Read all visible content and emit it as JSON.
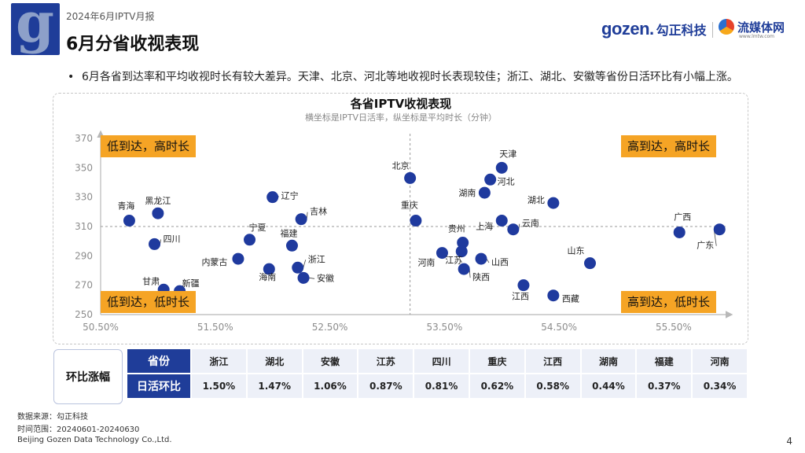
{
  "header": {
    "report_tag": "2024年6月IPTV月报",
    "title": "6月分省收视表现",
    "logo_letter": "g",
    "brand_gozen": "gozen.",
    "brand_gozen_cn": "勾正科技",
    "brand_media": "流媒体网",
    "brand_media_url": "www.lmtw.com"
  },
  "summary": "6月各省到达率和平均收视时长有较大差异。天津、北京、河北等地收视时长表现较佳；浙江、湖北、安徽等省份日活环比有小幅上涨。",
  "quadrants": {
    "top_left": "低到达，高时长",
    "top_right": "高到达，高时长",
    "bottom_left": "低到达，低时长",
    "bottom_right": "高到达，低时长"
  },
  "chart_data": {
    "type": "scatter",
    "title": "各省IPTV收视表现",
    "subtitle": "横坐标是IPTV日活率，纵坐标是平均时长（分钟）",
    "xlabel": "IPTV日活率",
    "ylabel": "平均时长（分钟）",
    "xlim": [
      50.5,
      55.96
    ],
    "ylim": [
      250,
      370
    ],
    "x_ticks": [
      "50.50%",
      "51.50%",
      "52.50%",
      "53.50%",
      "54.50%",
      "55.50%"
    ],
    "y_ticks": [
      "250",
      "270",
      "290",
      "310",
      "330",
      "350",
      "370"
    ],
    "ref_x": 53.2,
    "ref_y": 310,
    "point_color": "#1f3a9e",
    "points": [
      {
        "name": "天津",
        "x": 54.0,
        "y": 350
      },
      {
        "name": "北京",
        "x": 53.2,
        "y": 343
      },
      {
        "name": "河北",
        "x": 53.9,
        "y": 342
      },
      {
        "name": "湖南",
        "x": 53.85,
        "y": 333
      },
      {
        "name": "湖北",
        "x": 54.45,
        "y": 326
      },
      {
        "name": "辽宁",
        "x": 52.0,
        "y": 330
      },
      {
        "name": "黑龙江",
        "x": 51.0,
        "y": 319
      },
      {
        "name": "青海",
        "x": 50.75,
        "y": 314
      },
      {
        "name": "吉林",
        "x": 52.25,
        "y": 315
      },
      {
        "name": "重庆",
        "x": 53.25,
        "y": 314
      },
      {
        "name": "云南",
        "x": 54.1,
        "y": 308
      },
      {
        "name": "上海",
        "x": 54.0,
        "y": 314
      },
      {
        "name": "广西",
        "x": 55.55,
        "y": 306
      },
      {
        "name": "广东",
        "x": 55.9,
        "y": 308
      },
      {
        "name": "宁夏",
        "x": 51.8,
        "y": 301
      },
      {
        "name": "四川",
        "x": 50.97,
        "y": 298
      },
      {
        "name": "福建",
        "x": 52.17,
        "y": 297
      },
      {
        "name": "贵州",
        "x": 53.66,
        "y": 299
      },
      {
        "name": "江苏",
        "x": 53.65,
        "y": 293
      },
      {
        "name": "河南",
        "x": 53.48,
        "y": 292
      },
      {
        "name": "山西",
        "x": 53.82,
        "y": 288
      },
      {
        "name": "陕西",
        "x": 53.67,
        "y": 281
      },
      {
        "name": "内蒙古",
        "x": 51.7,
        "y": 288
      },
      {
        "name": "浙江",
        "x": 52.22,
        "y": 282
      },
      {
        "name": "海南",
        "x": 51.97,
        "y": 281
      },
      {
        "name": "安徽",
        "x": 52.27,
        "y": 275
      },
      {
        "name": "山东",
        "x": 54.77,
        "y": 285
      },
      {
        "name": "江西",
        "x": 54.19,
        "y": 270
      },
      {
        "name": "西藏",
        "x": 54.45,
        "y": 263
      },
      {
        "name": "甘肃",
        "x": 51.05,
        "y": 267
      },
      {
        "name": "新疆",
        "x": 51.19,
        "y": 266
      }
    ]
  },
  "table": {
    "side_label": "环比涨幅",
    "row1_header": "省份",
    "row2_header": "日活环比",
    "provinces": [
      "浙江",
      "湖北",
      "安徽",
      "江苏",
      "四川",
      "重庆",
      "江西",
      "湖南",
      "福建",
      "河南"
    ],
    "values": [
      "1.50%",
      "1.47%",
      "1.06%",
      "0.87%",
      "0.81%",
      "0.62%",
      "0.58%",
      "0.44%",
      "0.37%",
      "0.34%"
    ]
  },
  "footer": {
    "source": "数据来源：勾正科技",
    "range": "时间范围：20240601-20240630",
    "company": "Beijing Gozen Data Technology Co.,Ltd.",
    "page": "4"
  }
}
